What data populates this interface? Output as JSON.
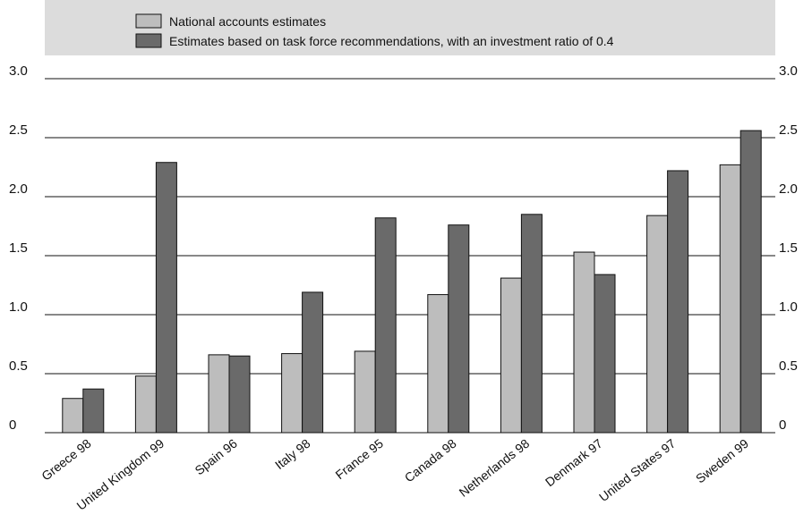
{
  "chart_data": {
    "type": "bar",
    "categories": [
      "Greece 98",
      "United Kingdom 99",
      "Spain 96",
      "Italy 98",
      "France 95",
      "Canada 98",
      "Netherlands 98",
      "Denmark 97",
      "United States 97",
      "Sweden 99"
    ],
    "series": [
      {
        "name": "National accounts estimates",
        "color": "#bdbdbd",
        "values": [
          0.29,
          0.48,
          0.66,
          0.67,
          0.69,
          1.17,
          1.31,
          1.53,
          1.84,
          2.27
        ]
      },
      {
        "name": "Estimates based on task force recommendations, with an investment ratio of 0.4",
        "color": "#6a6a6a",
        "values": [
          0.37,
          2.29,
          0.65,
          1.19,
          1.82,
          1.76,
          1.85,
          1.34,
          2.22,
          2.56
        ]
      }
    ],
    "y_ticks": [
      "0",
      "0.5",
      "1.0",
      "1.5",
      "2.0",
      "2.5",
      "3.0"
    ],
    "ylim": [
      0,
      3.0
    ],
    "grid": true,
    "axes": "left and right y-axes with identical ticks",
    "legend_position": "top",
    "legend_background": "#dcdcdc",
    "title": "",
    "xlabel": "",
    "ylabel": ""
  }
}
